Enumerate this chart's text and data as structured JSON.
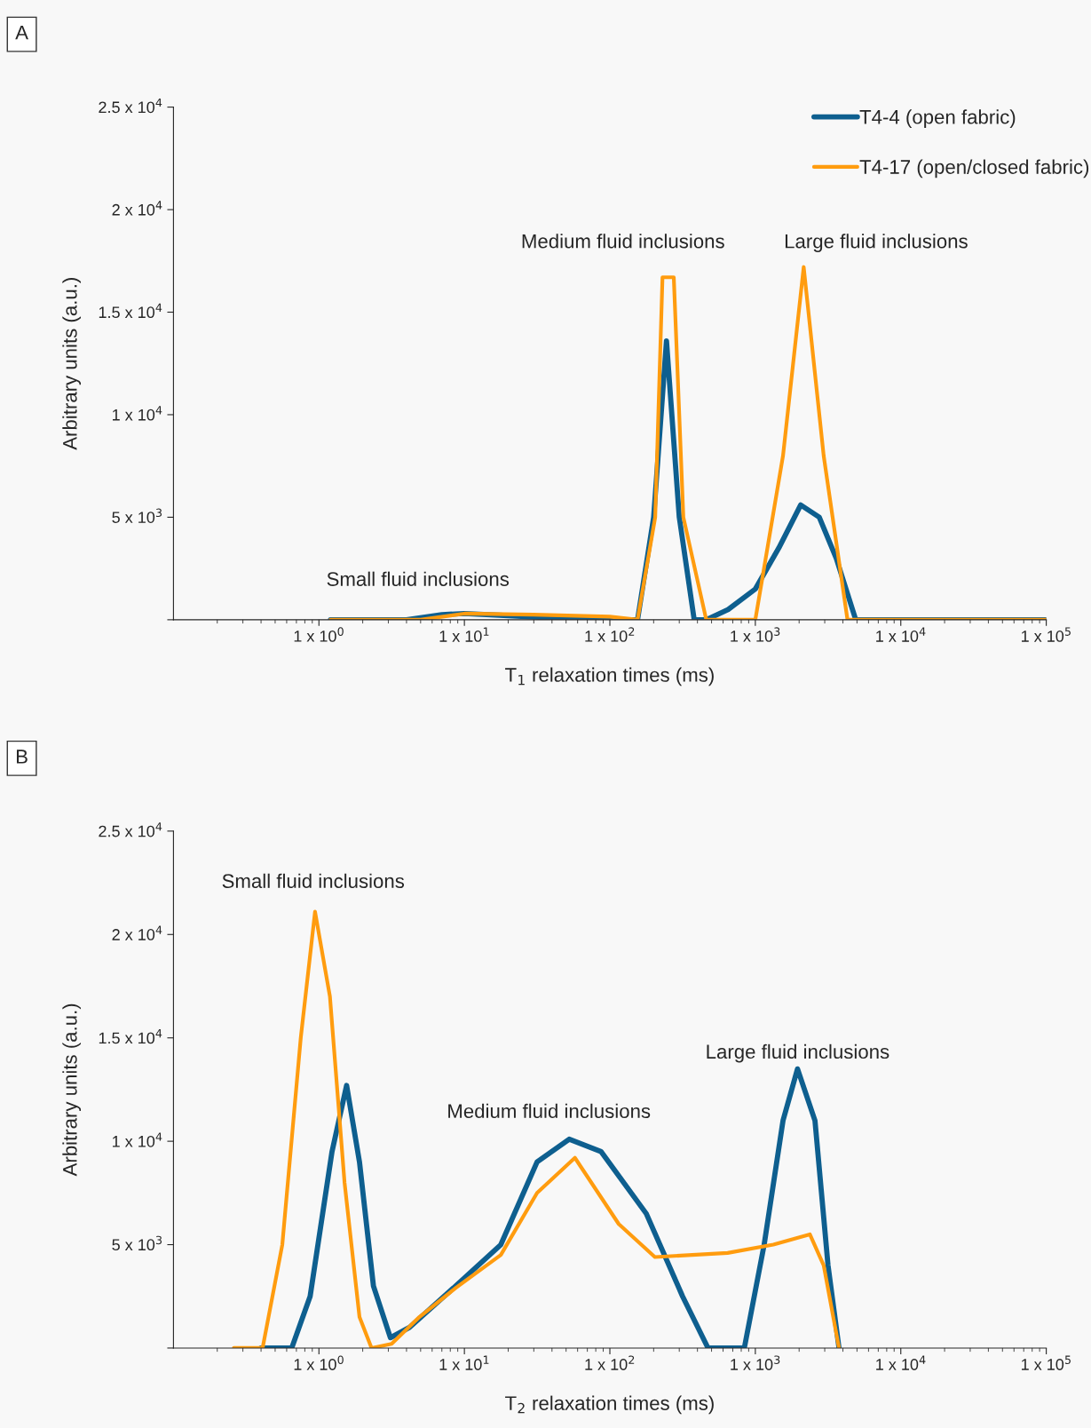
{
  "chart_data": [
    {
      "type": "line",
      "xlabel": "T$_{1}$ relaxation times (ms)",
      "ylabel": "Arbitrary units (a.u.)",
      "log": "x",
      "xlim": [
        0.1,
        100000
      ],
      "ylim": [
        0,
        25000
      ],
      "xticks": [
        {
          "value": 1,
          "label": "1 x 10$^{0}$"
        },
        {
          "value": 10,
          "label": "1 x 10$^{1}$"
        },
        {
          "value": 100,
          "label": "1 x 10$^{2}$"
        },
        {
          "value": 1000,
          "label": "1 x 10$^{3}$"
        },
        {
          "value": 10000,
          "label": "1 x 10$^{4}$"
        },
        {
          "value": 100000,
          "label": "1 x 10$^{5}$"
        }
      ],
      "yticks": [
        {
          "value": 0,
          "label": null
        },
        {
          "value": 5000,
          "label": "5 x 10$^{3}$"
        },
        {
          "value": 10000,
          "label": "1 x 10$^{4}$"
        },
        {
          "value": 15000,
          "label": "1.5 x 10$^{4}$"
        },
        {
          "value": 20000,
          "label": "2 x 10$^{4}$"
        },
        {
          "value": 25000,
          "label": "2.5 x 10$^{4}$"
        }
      ],
      "grid": false,
      "legend": "top right",
      "marker": "none",
      "series": [
        {
          "name": "T4-4 (open fabric)",
          "color": "#0e5f8f",
          "x": [
            1.2,
            4,
            7,
            10,
            20,
            50,
            100,
            155,
            200,
            245,
            300,
            380,
            460,
            650,
            1000,
            1450,
            2050,
            2750,
            3600,
            4900,
            10000,
            100000
          ],
          "values": [
            0,
            0,
            250,
            300,
            200,
            50,
            0,
            0,
            5000,
            13600,
            5000,
            0,
            0,
            500,
            1500,
            3500,
            5600,
            5000,
            3000,
            0,
            0,
            0
          ]
        },
        {
          "name": "T4-17 (open/closed fabric)",
          "color": "#ff9c0f",
          "x": [
            1.2,
            5,
            10,
            30,
            100,
            155,
            205,
            230,
            275,
            320,
            460,
            1000,
            1550,
            2150,
            2950,
            4300,
            10000,
            100000
          ],
          "values": [
            0,
            0,
            300,
            250,
            150,
            0,
            5000,
            16700,
            16700,
            5000,
            0,
            0,
            8000,
            17200,
            8000,
            0,
            0,
            0
          ]
        }
      ],
      "annotations": [
        "A",
        "Small fluid inclusions",
        "Medium fluid inclusions",
        "Large fluid inclusions"
      ]
    },
    {
      "type": "line",
      "xlabel": "T$_{2}$ relaxation times (ms)",
      "ylabel": "Arbitrary units (a.u.)",
      "log": "x",
      "xlim": [
        0.1,
        100000
      ],
      "ylim": [
        0,
        25000
      ],
      "xticks": [
        {
          "value": 1,
          "label": "1 x 10$^{0}$"
        },
        {
          "value": 10,
          "label": "1 x 10$^{1}$"
        },
        {
          "value": 100,
          "label": "1 x 10$^{2}$"
        },
        {
          "value": 1000,
          "label": "1 x 10$^{3}$"
        },
        {
          "value": 10000,
          "label": "1 x 10$^{4}$"
        },
        {
          "value": 100000,
          "label": "1 x 10$^{5}$"
        }
      ],
      "yticks": [
        {
          "value": 0,
          "label": null
        },
        {
          "value": 5000,
          "label": "5 x 10$^{3}$"
        },
        {
          "value": 10000,
          "label": "1 x 10$^{4}$"
        },
        {
          "value": 15000,
          "label": "1.5 x 10$^{4}$"
        },
        {
          "value": 20000,
          "label": "2 x 10$^{4}$"
        },
        {
          "value": 25000,
          "label": "2.5 x 10$^{4}$"
        }
      ],
      "grid": false,
      "marker": "none",
      "series": [
        {
          "color": "#0e5f8f",
          "x": [
            0.4,
            0.65,
            0.87,
            1.23,
            1.55,
            1.9,
            2.37,
            3.1,
            4.2,
            8.7,
            17.8,
            31.6,
            52.5,
            87,
            178,
            316,
            473,
            840,
            1150,
            1550,
            1950,
            2570,
            3160,
            3760
          ],
          "values": [
            0,
            0,
            2500,
            9500,
            12700,
            9000,
            3000,
            500,
            1000,
            3000,
            5000,
            9000,
            10100,
            9500,
            6500,
            2500,
            0,
            0,
            5000,
            11000,
            13500,
            11000,
            4000,
            0
          ]
        },
        {
          "color": "#ff9c0f",
          "x": [
            0.26,
            0.41,
            0.56,
            0.75,
            0.94,
            1.19,
            1.5,
            1.9,
            2.3,
            3.16,
            4.9,
            8.7,
            17.8,
            31.6,
            57.5,
            115,
            204,
            645,
            1330,
            2370,
            2950,
            3760
          ],
          "values": [
            0,
            0,
            5000,
            15000,
            21100,
            17000,
            8000,
            1500,
            0,
            200,
            1500,
            2900,
            4500,
            7500,
            9200,
            6000,
            4400,
            4600,
            5000,
            5500,
            4000,
            0
          ]
        }
      ],
      "annotations": [
        "B",
        "Small fluid inclusions",
        "Medium fluid inclusions",
        "Large fluid inclusions"
      ]
    }
  ]
}
